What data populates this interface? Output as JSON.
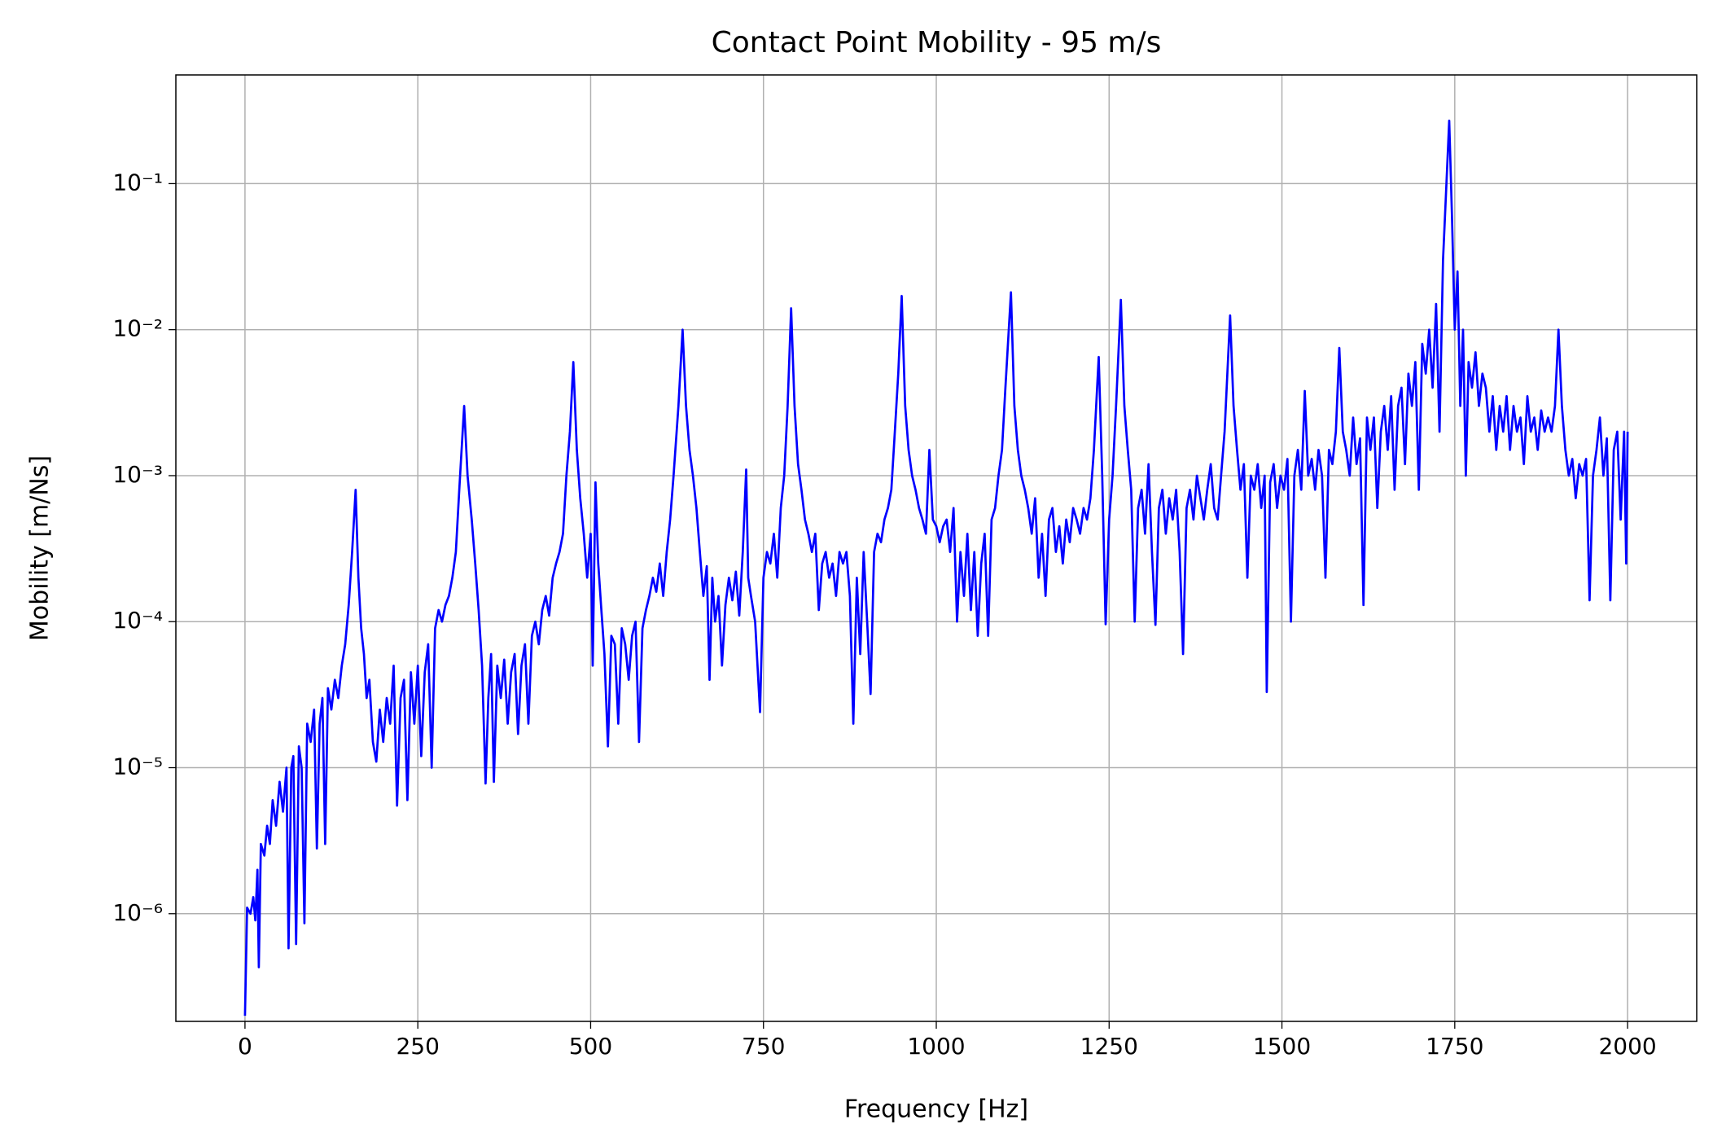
{
  "chart_data": {
    "type": "line",
    "title": "Contact Point Mobility - 95 m/s",
    "xlabel": "Frequency [Hz]",
    "ylabel": "Mobility [m/Ns]",
    "yscale": "log",
    "grid": true,
    "color": "#0000ff",
    "xlim": [
      -100,
      2100
    ],
    "xticks": [
      0,
      250,
      500,
      750,
      1000,
      1250,
      1500,
      1750,
      2000
    ],
    "ylim": [
      1.83e-07,
      0.555
    ],
    "yticks": [
      {
        "value": 1e-06,
        "label": "10⁻⁶"
      },
      {
        "value": 1e-05,
        "label": "10⁻⁵"
      },
      {
        "value": 0.0001,
        "label": "10⁻⁴"
      },
      {
        "value": 0.001,
        "label": "10⁻³"
      },
      {
        "value": 0.01,
        "label": "10⁻²"
      },
      {
        "value": 0.1,
        "label": "10⁻¹"
      }
    ],
    "x": [
      0,
      3,
      8,
      12,
      15,
      18,
      20,
      23,
      28,
      32,
      36,
      40,
      45,
      50,
      55,
      60,
      63,
      67,
      70,
      74,
      78,
      82,
      86,
      90,
      95,
      100,
      104,
      108,
      112,
      116,
      120,
      125,
      130,
      135,
      140,
      145,
      150,
      155,
      160,
      164,
      168,
      172,
      176,
      180,
      185,
      190,
      195,
      200,
      205,
      210,
      215,
      220,
      225,
      230,
      235,
      240,
      245,
      250,
      255,
      260,
      265,
      270,
      275,
      280,
      285,
      290,
      295,
      300,
      305,
      310,
      317,
      322,
      328,
      333,
      338,
      343,
      348,
      352,
      356,
      360,
      365,
      370,
      375,
      380,
      385,
      390,
      395,
      400,
      405,
      410,
      415,
      420,
      425,
      430,
      435,
      440,
      445,
      450,
      455,
      460,
      465,
      470,
      475,
      480,
      485,
      490,
      495,
      500,
      503,
      507,
      511,
      515,
      520,
      525,
      530,
      535,
      540,
      545,
      550,
      555,
      560,
      565,
      570,
      575,
      580,
      585,
      590,
      595,
      600,
      605,
      610,
      615,
      620,
      627,
      633,
      638,
      643,
      648,
      653,
      658,
      663,
      668,
      672,
      676,
      680,
      685,
      690,
      695,
      700,
      705,
      710,
      715,
      720,
      725,
      728,
      732,
      738,
      745,
      750,
      755,
      760,
      765,
      770,
      775,
      780,
      785,
      790,
      795,
      800,
      805,
      810,
      815,
      820,
      825,
      830,
      835,
      840,
      845,
      850,
      855,
      860,
      865,
      870,
      875,
      880,
      885,
      890,
      895,
      900,
      905,
      910,
      915,
      920,
      925,
      930,
      935,
      940,
      945,
      950,
      955,
      960,
      965,
      970,
      975,
      980,
      985,
      990,
      995,
      1000,
      1005,
      1010,
      1015,
      1020,
      1025,
      1030,
      1035,
      1040,
      1045,
      1050,
      1055,
      1060,
      1065,
      1070,
      1075,
      1080,
      1085,
      1090,
      1095,
      1100,
      1108,
      1113,
      1118,
      1123,
      1128,
      1133,
      1138,
      1143,
      1148,
      1153,
      1158,
      1163,
      1168,
      1173,
      1178,
      1183,
      1188,
      1193,
      1198,
      1203,
      1208,
      1213,
      1218,
      1223,
      1228,
      1235,
      1240,
      1245,
      1250,
      1255,
      1260,
      1267,
      1272,
      1277,
      1282,
      1287,
      1292,
      1297,
      1302,
      1307,
      1312,
      1317,
      1322,
      1327,
      1332,
      1337,
      1342,
      1347,
      1352,
      1357,
      1362,
      1367,
      1372,
      1377,
      1382,
      1387,
      1392,
      1397,
      1402,
      1407,
      1412,
      1417,
      1425,
      1430,
      1435,
      1440,
      1445,
      1450,
      1455,
      1460,
      1465,
      1470,
      1475,
      1478,
      1483,
      1488,
      1493,
      1498,
      1503,
      1508,
      1513,
      1518,
      1523,
      1528,
      1533,
      1538,
      1543,
      1548,
      1553,
      1558,
      1563,
      1568,
      1573,
      1578,
      1583,
      1588,
      1593,
      1598,
      1603,
      1608,
      1613,
      1618,
      1623,
      1628,
      1633,
      1638,
      1643,
      1648,
      1653,
      1658,
      1663,
      1668,
      1673,
      1678,
      1683,
      1688,
      1693,
      1698,
      1703,
      1708,
      1713,
      1718,
      1723,
      1728,
      1733,
      1738,
      1742,
      1746,
      1750,
      1754,
      1758,
      1762,
      1766,
      1770,
      1775,
      1780,
      1785,
      1790,
      1795,
      1800,
      1805,
      1810,
      1815,
      1820,
      1825,
      1830,
      1835,
      1840,
      1845,
      1850,
      1855,
      1860,
      1865,
      1870,
      1875,
      1880,
      1885,
      1890,
      1895,
      1900,
      1905,
      1910,
      1915,
      1920,
      1925,
      1930,
      1935,
      1940,
      1945,
      1950,
      1955,
      1960,
      1965,
      1970,
      1975,
      1980,
      1985,
      1990,
      1995,
      1998,
      2000
    ],
    "values": [
      2e-07,
      1.1e-06,
      1e-06,
      1.3e-06,
      9e-07,
      2e-06,
      4.3e-07,
      3e-06,
      2.5e-06,
      4e-06,
      3e-06,
      6e-06,
      4e-06,
      8e-06,
      5e-06,
      1e-05,
      5.8e-07,
      1e-05,
      1.2e-05,
      6.2e-07,
      1.4e-05,
      1e-05,
      8.6e-07,
      2e-05,
      1.5e-05,
      2.5e-05,
      2.8e-06,
      2e-05,
      3e-05,
      3e-06,
      3.5e-05,
      2.5e-05,
      4e-05,
      3e-05,
      5e-05,
      7e-05,
      0.00013,
      0.0003,
      0.0008,
      0.0002,
      9e-05,
      6e-05,
      3e-05,
      4e-05,
      1.5e-05,
      1.1e-05,
      2.5e-05,
      1.5e-05,
      3e-05,
      2e-05,
      5e-05,
      5.5e-06,
      3e-05,
      4e-05,
      6e-06,
      4.5e-05,
      2e-05,
      5e-05,
      1.2e-05,
      4.5e-05,
      7e-05,
      1e-05,
      9e-05,
      0.00012,
      0.0001,
      0.00013,
      0.00015,
      0.0002,
      0.0003,
      0.0008,
      0.003,
      0.001,
      0.0005,
      0.00025,
      0.00012,
      5e-05,
      7.8e-06,
      3e-05,
      6e-05,
      8e-06,
      5e-05,
      3e-05,
      5.5e-05,
      2e-05,
      4.5e-05,
      6e-05,
      1.7e-05,
      5e-05,
      7e-05,
      2e-05,
      8e-05,
      0.0001,
      7e-05,
      0.00012,
      0.00015,
      0.00011,
      0.0002,
      0.00025,
      0.0003,
      0.0004,
      0.001,
      0.002,
      0.006,
      0.0015,
      0.0007,
      0.0004,
      0.0002,
      0.0004,
      5e-05,
      0.0009,
      0.00025,
      0.00013,
      6e-05,
      1.4e-05,
      8e-05,
      7e-05,
      2e-05,
      9e-05,
      7e-05,
      4e-05,
      8e-05,
      0.0001,
      1.5e-05,
      9e-05,
      0.00012,
      0.00015,
      0.0002,
      0.00016,
      0.00025,
      0.00015,
      0.0003,
      0.0005,
      0.001,
      0.003,
      0.01,
      0.003,
      0.0015,
      0.001,
      0.0006,
      0.0003,
      0.00015,
      0.00024,
      4e-05,
      0.0002,
      0.0001,
      0.00015,
      5e-05,
      0.00013,
      0.0002,
      0.00014,
      0.00022,
      0.00011,
      0.0003,
      0.0011,
      0.0002,
      0.00015,
      0.0001,
      2.4e-05,
      0.0002,
      0.0003,
      0.00025,
      0.0004,
      0.0002,
      0.0006,
      0.001,
      0.003,
      0.014,
      0.003,
      0.0012,
      0.0008,
      0.0005,
      0.0004,
      0.0003,
      0.0004,
      0.00012,
      0.00025,
      0.0003,
      0.0002,
      0.00025,
      0.00015,
      0.0003,
      0.00025,
      0.0003,
      0.00015,
      2e-05,
      0.0002,
      6e-05,
      0.0003,
      0.0001,
      3.2e-05,
      0.0003,
      0.0004,
      0.00035,
      0.0005,
      0.0006,
      0.0008,
      0.002,
      0.005,
      0.017,
      0.003,
      0.0015,
      0.001,
      0.0008,
      0.0006,
      0.0005,
      0.0004,
      0.0015,
      0.0005,
      0.00045,
      0.00035,
      0.00045,
      0.0005,
      0.0003,
      0.0006,
      0.0001,
      0.0003,
      0.00015,
      0.0004,
      0.00012,
      0.0003,
      8e-05,
      0.00025,
      0.0004,
      8e-05,
      0.0005,
      0.0006,
      0.001,
      0.0015,
      0.004,
      0.018,
      0.003,
      0.0015,
      0.001,
      0.0008,
      0.0006,
      0.0004,
      0.0007,
      0.0002,
      0.0004,
      0.00015,
      0.0005,
      0.0006,
      0.0003,
      0.00045,
      0.00025,
      0.0005,
      0.00035,
      0.0006,
      0.0005,
      0.0004,
      0.0006,
      0.0005,
      0.0007,
      0.0015,
      0.0065,
      0.001,
      9.6e-05,
      0.0005,
      0.001,
      0.003,
      0.016,
      0.003,
      0.0015,
      0.0008,
      0.0001,
      0.0006,
      0.0008,
      0.0004,
      0.0012,
      0.0003,
      9.5e-05,
      0.0006,
      0.0008,
      0.0004,
      0.0007,
      0.0005,
      0.0008,
      0.0003,
      6e-05,
      0.0006,
      0.0008,
      0.0005,
      0.001,
      0.0007,
      0.0005,
      0.0008,
      0.0012,
      0.0006,
      0.0005,
      0.001,
      0.002,
      0.0125,
      0.003,
      0.0015,
      0.0008,
      0.0012,
      0.0002,
      0.001,
      0.0008,
      0.0012,
      0.0006,
      0.001,
      3.3e-05,
      0.0009,
      0.0012,
      0.0006,
      0.001,
      0.0008,
      0.0013,
      0.0001,
      0.001,
      0.0015,
      0.0008,
      0.0038,
      0.001,
      0.0013,
      0.0008,
      0.0015,
      0.001,
      0.0002,
      0.0015,
      0.0012,
      0.002,
      0.0075,
      0.002,
      0.0015,
      0.001,
      0.0025,
      0.0012,
      0.0018,
      0.00013,
      0.0025,
      0.0015,
      0.0025,
      0.0006,
      0.002,
      0.003,
      0.0015,
      0.0035,
      0.0008,
      0.003,
      0.004,
      0.0012,
      0.005,
      0.003,
      0.006,
      0.0008,
      0.008,
      0.005,
      0.01,
      0.004,
      0.015,
      0.002,
      0.03,
      0.1,
      0.27,
      0.06,
      0.01,
      0.025,
      0.003,
      0.01,
      0.001,
      0.006,
      0.004,
      0.007,
      0.003,
      0.005,
      0.004,
      0.002,
      0.0035,
      0.0015,
      0.003,
      0.002,
      0.0035,
      0.0015,
      0.003,
      0.002,
      0.0025,
      0.0012,
      0.0035,
      0.002,
      0.0025,
      0.0015,
      0.0028,
      0.002,
      0.0025,
      0.002,
      0.003,
      0.01,
      0.003,
      0.0015,
      0.001,
      0.0013,
      0.0007,
      0.0012,
      0.001,
      0.0013,
      0.00014,
      0.001,
      0.0015,
      0.0025,
      0.001,
      0.0018,
      0.00014,
      0.0015,
      0.002,
      0.0005,
      0.002,
      0.00025,
      0.002
    ]
  }
}
